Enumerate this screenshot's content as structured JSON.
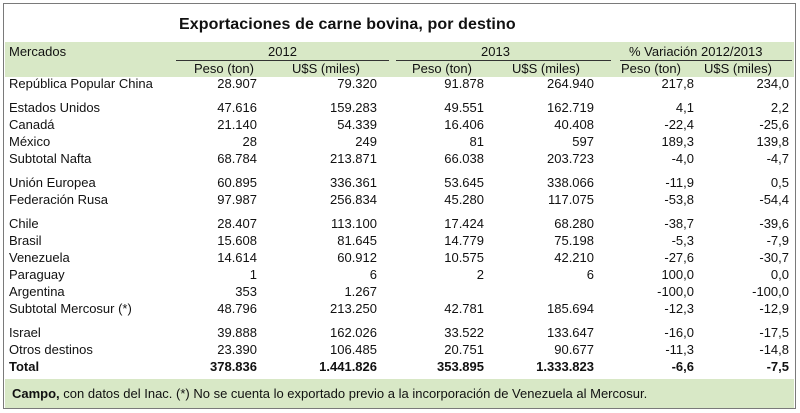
{
  "title": "Exportaciones de carne bovina, por destino",
  "header": {
    "mercados": "Mercados",
    "year1": "2012",
    "year2": "2013",
    "variation": "% Variación 2012/2013",
    "peso": "Peso (ton)",
    "usd": "U$S (miles)"
  },
  "rows": [
    {
      "name": "República Popular China",
      "v": [
        "28.907",
        "79.320",
        "91.878",
        "264.940",
        "217,8",
        "234,0"
      ]
    },
    {
      "gap": true
    },
    {
      "name": "Estados Unidos",
      "v": [
        "47.616",
        "159.283",
        "49.551",
        "162.719",
        "4,1",
        "2,2"
      ]
    },
    {
      "name": "Canadá",
      "v": [
        "21.140",
        "54.339",
        "16.406",
        "40.408",
        "-22,4",
        "-25,6"
      ]
    },
    {
      "name": "México",
      "v": [
        "28",
        "249",
        "81",
        "597",
        "189,3",
        "139,8"
      ]
    },
    {
      "name": "Subtotal Nafta",
      "v": [
        "68.784",
        "213.871",
        "66.038",
        "203.723",
        "-4,0",
        "-4,7"
      ]
    },
    {
      "gap": true
    },
    {
      "name": "Unión Europea",
      "v": [
        "60.895",
        "336.361",
        "53.645",
        "338.066",
        "-11,9",
        "0,5"
      ]
    },
    {
      "name": "Federación Rusa",
      "v": [
        "97.987",
        "256.834",
        "45.280",
        "117.075",
        "-53,8",
        "-54,4"
      ]
    },
    {
      "gap": true
    },
    {
      "name": "Chile",
      "v": [
        "28.407",
        "113.100",
        "17.424",
        "68.280",
        "-38,7",
        "-39,6"
      ]
    },
    {
      "name": "Brasil",
      "v": [
        "15.608",
        "81.645",
        "14.779",
        "75.198",
        "-5,3",
        "-7,9"
      ]
    },
    {
      "name": "Venezuela",
      "v": [
        "14.614",
        "60.912",
        "10.575",
        "42.210",
        "-27,6",
        "-30,7"
      ]
    },
    {
      "name": "Paraguay",
      "v": [
        "1",
        "6",
        "2",
        "6",
        "100,0",
        "0,0"
      ]
    },
    {
      "name": "Argentina",
      "v": [
        "353",
        "1.267",
        "",
        "",
        "-100,0",
        "-100,0"
      ]
    },
    {
      "name": "Subtotal Mercosur (*)",
      "v": [
        "48.796",
        "213.250",
        "42.781",
        "185.694",
        "-12,3",
        "-12,9"
      ]
    },
    {
      "gap": true
    },
    {
      "name": "Israel",
      "v": [
        "39.888",
        "162.026",
        "33.522",
        "133.647",
        "-16,0",
        "-17,5"
      ]
    },
    {
      "name": "Otros destinos",
      "v": [
        "23.390",
        "106.485",
        "20.751",
        "90.677",
        "-11,3",
        "-14,8"
      ]
    },
    {
      "name": "Total",
      "total": true,
      "v": [
        "378.836",
        "1.441.826",
        "353.895",
        "1.333.823",
        "-6,6",
        "-7,5"
      ]
    }
  ],
  "footer": {
    "source_bold": "Campo,",
    "source_rest": " con datos del Inac. (*) No se cuenta lo exportado previo a la incorporación de Venezuela al Mercosur."
  }
}
